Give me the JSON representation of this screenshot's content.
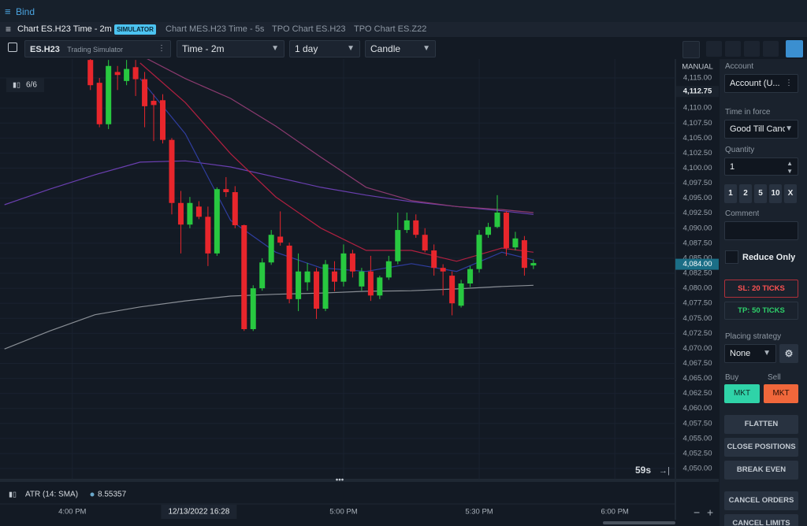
{
  "menu": {
    "title": "Bind"
  },
  "tabs": [
    {
      "label": "Chart ES.H23 Time - 2m",
      "badge": "SIMULATOR"
    },
    {
      "label": "Chart MES.H23 Time - 5s"
    },
    {
      "label": "TPO Chart ES.H23"
    },
    {
      "label": "TPO Chart ES.Z22"
    }
  ],
  "toolbar": {
    "symbol": "ES.H23",
    "account": "Trading Simulator",
    "timeframe": "Time - 2m",
    "range": "1 day",
    "style": "Candle"
  },
  "chart": {
    "indicator_count": "6/6",
    "scale_mode": "MANUAL",
    "grid": true,
    "up_color": "#28c840",
    "down_color": "#e8262c",
    "ylim": [
      4048.3,
      4118.15
    ],
    "yticks": [
      {
        "value": 4115,
        "label": "4,115.00"
      },
      {
        "value": 4110,
        "label": "4,110.00"
      },
      {
        "value": 4107.5,
        "label": "4,107.50"
      },
      {
        "value": 4105,
        "label": "4,105.00"
      },
      {
        "value": 4102.5,
        "label": "4,102.50"
      },
      {
        "value": 4100,
        "label": "4,100.00"
      },
      {
        "value": 4097.5,
        "label": "4,097.50"
      },
      {
        "value": 4095,
        "label": "4,095.00"
      },
      {
        "value": 4092.5,
        "label": "4,092.50"
      },
      {
        "value": 4090,
        "label": "4,090.00"
      },
      {
        "value": 4087.5,
        "label": "4,087.50"
      },
      {
        "value": 4085,
        "label": "4,085.00"
      },
      {
        "value": 4082.5,
        "label": "4,082.50"
      },
      {
        "value": 4080,
        "label": "4,080.00"
      },
      {
        "value": 4077.5,
        "label": "4,077.50"
      },
      {
        "value": 4075,
        "label": "4,075.00"
      },
      {
        "value": 4072.5,
        "label": "4,072.50"
      },
      {
        "value": 4070,
        "label": "4,070.00"
      },
      {
        "value": 4067.5,
        "label": "4,067.50"
      },
      {
        "value": 4065,
        "label": "4,065.00"
      },
      {
        "value": 4062.5,
        "label": "4,062.50"
      },
      {
        "value": 4060,
        "label": "4,060.00"
      },
      {
        "value": 4057.5,
        "label": "4,057.50"
      },
      {
        "value": 4055,
        "label": "4,055.00"
      },
      {
        "value": 4052.5,
        "label": "4,052.50"
      },
      {
        "value": 4050,
        "label": "4,050.00"
      }
    ],
    "last_price": {
      "value": 4084,
      "label": "4,084.00"
    },
    "marker_price": {
      "value": 4112.75,
      "label": "4,112.75"
    },
    "xlim": [
      944,
      1093.4
    ],
    "xticks": [
      {
        "value": 960,
        "label": "4:00 PM"
      },
      {
        "value": 1020,
        "label": "5:00 PM"
      },
      {
        "value": 1050,
        "label": "5:30 PM"
      },
      {
        "value": 1080,
        "label": "6:00 PM"
      }
    ],
    "crosshair_time": {
      "value": 988,
      "label": "12/13/2022 16:28"
    },
    "countdown": "59s",
    "candles": [
      {
        "x": 964,
        "open": 4118,
        "high": 4119,
        "low": 4113,
        "close": 4113.8
      },
      {
        "x": 966,
        "open": 4114.2,
        "high": 4115,
        "low": 4106.8,
        "close": 4107.3
      },
      {
        "x": 968,
        "open": 4107.3,
        "high": 4118,
        "low": 4106.5,
        "close": 4117
      },
      {
        "x": 970,
        "open": 4116,
        "high": 4117,
        "low": 4113,
        "close": 4115.5
      },
      {
        "x": 972,
        "open": 4114.5,
        "high": 4118,
        "low": 4113.8,
        "close": 4116.5
      },
      {
        "x": 974,
        "open": 4116.8,
        "high": 4118,
        "low": 4112,
        "close": 4114.8
      },
      {
        "x": 976,
        "open": 4114.8,
        "high": 4116,
        "low": 4106.8,
        "close": 4110.3
      },
      {
        "x": 978,
        "open": 4111.2,
        "high": 4112.3,
        "low": 4104.5,
        "close": 4110.5
      },
      {
        "x": 980,
        "open": 4111.3,
        "high": 4112.3,
        "low": 4104.1,
        "close": 4104.7
      },
      {
        "x": 982,
        "open": 4104.7,
        "high": 4105,
        "low": 4092.3,
        "close": 4094.2
      },
      {
        "x": 984,
        "open": 4094.2,
        "high": 4096.2,
        "low": 4085.8,
        "close": 4090.6
      },
      {
        "x": 986,
        "open": 4090.6,
        "high": 4095.2,
        "low": 4090,
        "close": 4094.2
      },
      {
        "x": 988,
        "open": 4093.6,
        "high": 4094.5,
        "low": 4091.5,
        "close": 4091.9
      },
      {
        "x": 990,
        "open": 4091.9,
        "high": 4093.6,
        "low": 4083.7,
        "close": 4085.8
      },
      {
        "x": 992,
        "open": 4085.8,
        "high": 4096.8,
        "low": 4085.4,
        "close": 4096.5
      },
      {
        "x": 994,
        "open": 4096.5,
        "high": 4098.5,
        "low": 4095.2,
        "close": 4096
      },
      {
        "x": 996,
        "open": 4096,
        "high": 4097,
        "low": 4090,
        "close": 4090.5
      },
      {
        "x": 998,
        "open": 4090.5,
        "high": 4090.6,
        "low": 4072.9,
        "close": 4073.2
      },
      {
        "x": 1000,
        "open": 4073.2,
        "high": 4080.5,
        "low": 4072.9,
        "close": 4080
      },
      {
        "x": 1002,
        "open": 4080,
        "high": 4085,
        "low": 4079.6,
        "close": 4084.3
      },
      {
        "x": 1004,
        "open": 4084.3,
        "high": 4089.7,
        "low": 4083.9,
        "close": 4088.9
      },
      {
        "x": 1006,
        "open": 4088.6,
        "high": 4092.8,
        "low": 4087.1,
        "close": 4087.6
      },
      {
        "x": 1008,
        "open": 4087.1,
        "high": 4087.6,
        "low": 4077.5,
        "close": 4078.2
      },
      {
        "x": 1010,
        "open": 4078.2,
        "high": 4085.8,
        "low": 4076.2,
        "close": 4082.8
      },
      {
        "x": 1012,
        "open": 4081,
        "high": 4084.2,
        "low": 4079.6,
        "close": 4082.8
      },
      {
        "x": 1014,
        "open": 4082.8,
        "high": 4083.4,
        "low": 4074.9,
        "close": 4076.6
      },
      {
        "x": 1016,
        "open": 4076.6,
        "high": 4084.7,
        "low": 4076.2,
        "close": 4084
      },
      {
        "x": 1018,
        "open": 4082.8,
        "high": 4084.5,
        "low": 4079.5,
        "close": 4081.1
      },
      {
        "x": 1020,
        "open": 4081.1,
        "high": 4087.3,
        "low": 4080.3,
        "close": 4085.8
      },
      {
        "x": 1022,
        "open": 4085.8,
        "high": 4086.4,
        "low": 4081.8,
        "close": 4082.8
      },
      {
        "x": 1024,
        "open": 4080.3,
        "high": 4083.4,
        "low": 4079.6,
        "close": 4082.8
      },
      {
        "x": 1026,
        "open": 4082.8,
        "high": 4085.4,
        "low": 4077.9,
        "close": 4078.8
      },
      {
        "x": 1028,
        "open": 4078.8,
        "high": 4082.1,
        "low": 4078.2,
        "close": 4081.8
      },
      {
        "x": 1030,
        "open": 4081.8,
        "high": 4085.4,
        "low": 4081.4,
        "close": 4084.5
      },
      {
        "x": 1032,
        "open": 4084.5,
        "high": 4092.6,
        "low": 4084,
        "close": 4089.7
      },
      {
        "x": 1034,
        "open": 4089.7,
        "high": 4092.6,
        "low": 4089.2,
        "close": 4091.3
      },
      {
        "x": 1036,
        "open": 4091.3,
        "high": 4092.3,
        "low": 4088.4,
        "close": 4088.9
      },
      {
        "x": 1038,
        "open": 4088.9,
        "high": 4090,
        "low": 4086,
        "close": 4086.3
      },
      {
        "x": 1040,
        "open": 4086.3,
        "high": 4087.3,
        "low": 4082.1,
        "close": 4083.4
      },
      {
        "x": 1042,
        "open": 4083.4,
        "high": 4084,
        "low": 4078.8,
        "close": 4082.8
      },
      {
        "x": 1044,
        "open": 4082.1,
        "high": 4082.8,
        "low": 4075.5,
        "close": 4077.5
      },
      {
        "x": 1046,
        "open": 4077.1,
        "high": 4081.4,
        "low": 4076.8,
        "close": 4080.8
      },
      {
        "x": 1048,
        "open": 4080.8,
        "high": 4083.7,
        "low": 4080.2,
        "close": 4083.2
      },
      {
        "x": 1050,
        "open": 4083.2,
        "high": 4089.7,
        "low": 4082.6,
        "close": 4088.9
      },
      {
        "x": 1052,
        "open": 4088.9,
        "high": 4090.9,
        "low": 4088.4,
        "close": 4090.2
      },
      {
        "x": 1054,
        "open": 4090.2,
        "high": 4095.5,
        "low": 4090,
        "close": 4092.6
      },
      {
        "x": 1056,
        "open": 4092.6,
        "high": 4092.8,
        "low": 4085.4,
        "close": 4086.7
      },
      {
        "x": 1058,
        "open": 4086.8,
        "high": 4089.4,
        "low": 4086.3,
        "close": 4088.3
      },
      {
        "x": 1060,
        "open": 4088,
        "high": 4088.7,
        "low": 4082.1,
        "close": 4083.4
      },
      {
        "x": 1062,
        "open": 4083.8,
        "high": 4084.8,
        "low": 4083.2,
        "close": 4084.2
      }
    ],
    "ma_x": [
      945,
      955,
      965,
      975,
      985,
      995,
      1005,
      1015,
      1025,
      1035,
      1045,
      1055,
      1062
    ],
    "series": [
      {
        "color": "#8a8f96",
        "values": [
          4069.9,
          4072.9,
          4075.6,
          4076.9,
          4077.9,
          4078.7,
          4079,
          4079.2,
          4079.5,
          4079.6,
          4079.9,
          4080.3,
          4080.5
        ]
      },
      {
        "color": "#6a3fb0",
        "values": [
          4093.9,
          4096.5,
          4098.9,
          4101,
          4101.2,
          4100.2,
          4098.5,
          4096.8,
          4095.5,
          4094.4,
          4093.6,
          4092.9,
          4092.3
        ]
      },
      {
        "color": "#8b3a6f",
        "values": [
          null,
          null,
          null,
          4118.8,
          4114.9,
          4111.6,
          4107,
          4101.8,
          4096.8,
          4094.6,
          4093.6,
          4093.1,
          4092.6
        ]
      },
      {
        "color": "#b02040",
        "values": [
          null,
          null,
          null,
          4117.5,
          4110.9,
          4102.4,
          4095.2,
          4090,
          4086.3,
          4086.3,
          4084.5,
          4086.7,
          4086
        ]
      },
      {
        "color": "#2f3d9e",
        "values": [
          null,
          null,
          null,
          4114.9,
          4105.7,
          4091.3,
          4086,
          4083.4,
          4082.8,
          4084.1,
          4082.8,
          4086,
          4084.7
        ]
      }
    ]
  },
  "atr": {
    "label": "ATR (14: SMA)",
    "value": 8.55357
  },
  "order_panel": {
    "account_label": "Account",
    "account": "Account (U...",
    "tif_label": "Time in force",
    "tif": "Good Till Canc",
    "quantity_label": "Quantity",
    "quantity": 1,
    "quick_qty": [
      1,
      2,
      5,
      10,
      "X"
    ],
    "comment_label": "Comment",
    "reduce_only": "Reduce Only",
    "sl": "SL: 20 TICKS",
    "tp": "TP: 50 TICKS",
    "strategy_label": "Placing strategy",
    "strategy": "None",
    "buy_label": "Buy",
    "sell_label": "Sell",
    "buy_button": "MKT",
    "sell_button": "MKT",
    "actions": [
      "FLATTEN",
      "CLOSE POSITIONS",
      "BREAK EVEN",
      "CANCEL ORDERS",
      "CANCEL LIMITS"
    ]
  }
}
